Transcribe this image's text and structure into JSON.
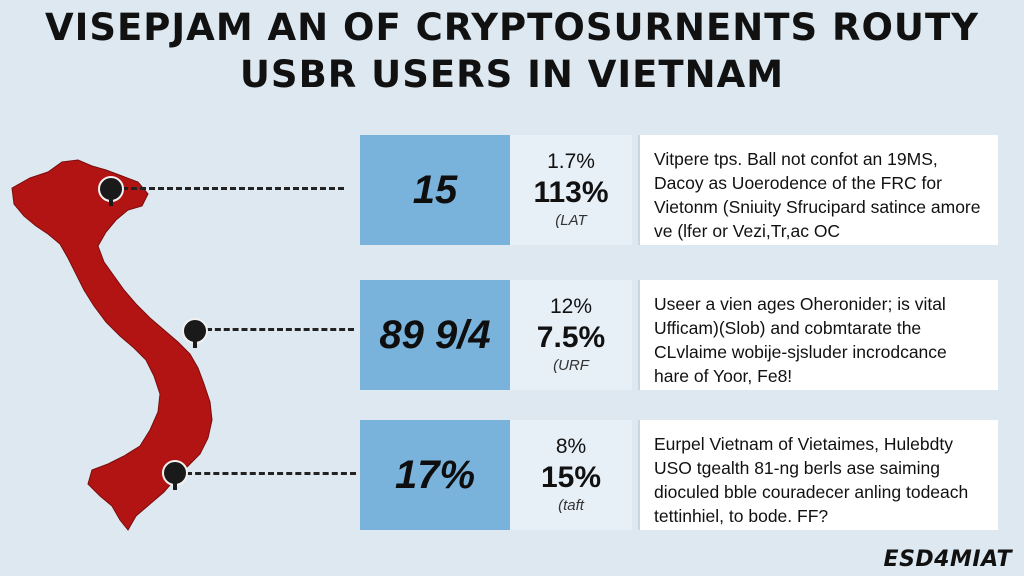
{
  "title": {
    "line1": "VISEPJAM AN OF CRYPTOSURNENTS ROUTY",
    "line2": "USBR USERS IN VIETNAM"
  },
  "rows": [
    {
      "stat": "15",
      "pct1": "1.7%",
      "pct2": "113%",
      "note": "(LAT",
      "desc": "Vitpere tps. Ball not confot an 19MS, Dacoy as Uoerodence of the FRC for Vietonm (Sniuity Sfrucipard satince amore ve (lfer or Vezi,Tr,ac OC"
    },
    {
      "stat": "89 9/4",
      "pct1": "12%",
      "pct2": "7.5%",
      "note": "(URF",
      "desc": "Useer a vien ages Oheronider; is vital Ufficam)(Slob) and cobmtarate the CLvlaime wobije-sjsluder incrodcance hare of Yoor, Fe8!"
    },
    {
      "stat": "17%",
      "pct1": "8%",
      "pct2": "15%",
      "note": "(taft",
      "desc": "Eurpel Vietnam of Vietaimes, Hulebdty USO tgealth 81-ng berls ase saiming dioculed bble couradecer anling todeach tettinhiel, to bode. FF?"
    }
  ],
  "logo": "ESD4MIAT",
  "colors": {
    "background": "#dde8f0",
    "stat_box": "#79b3dc",
    "map_fill": "#b21414",
    "text": "#111111"
  }
}
